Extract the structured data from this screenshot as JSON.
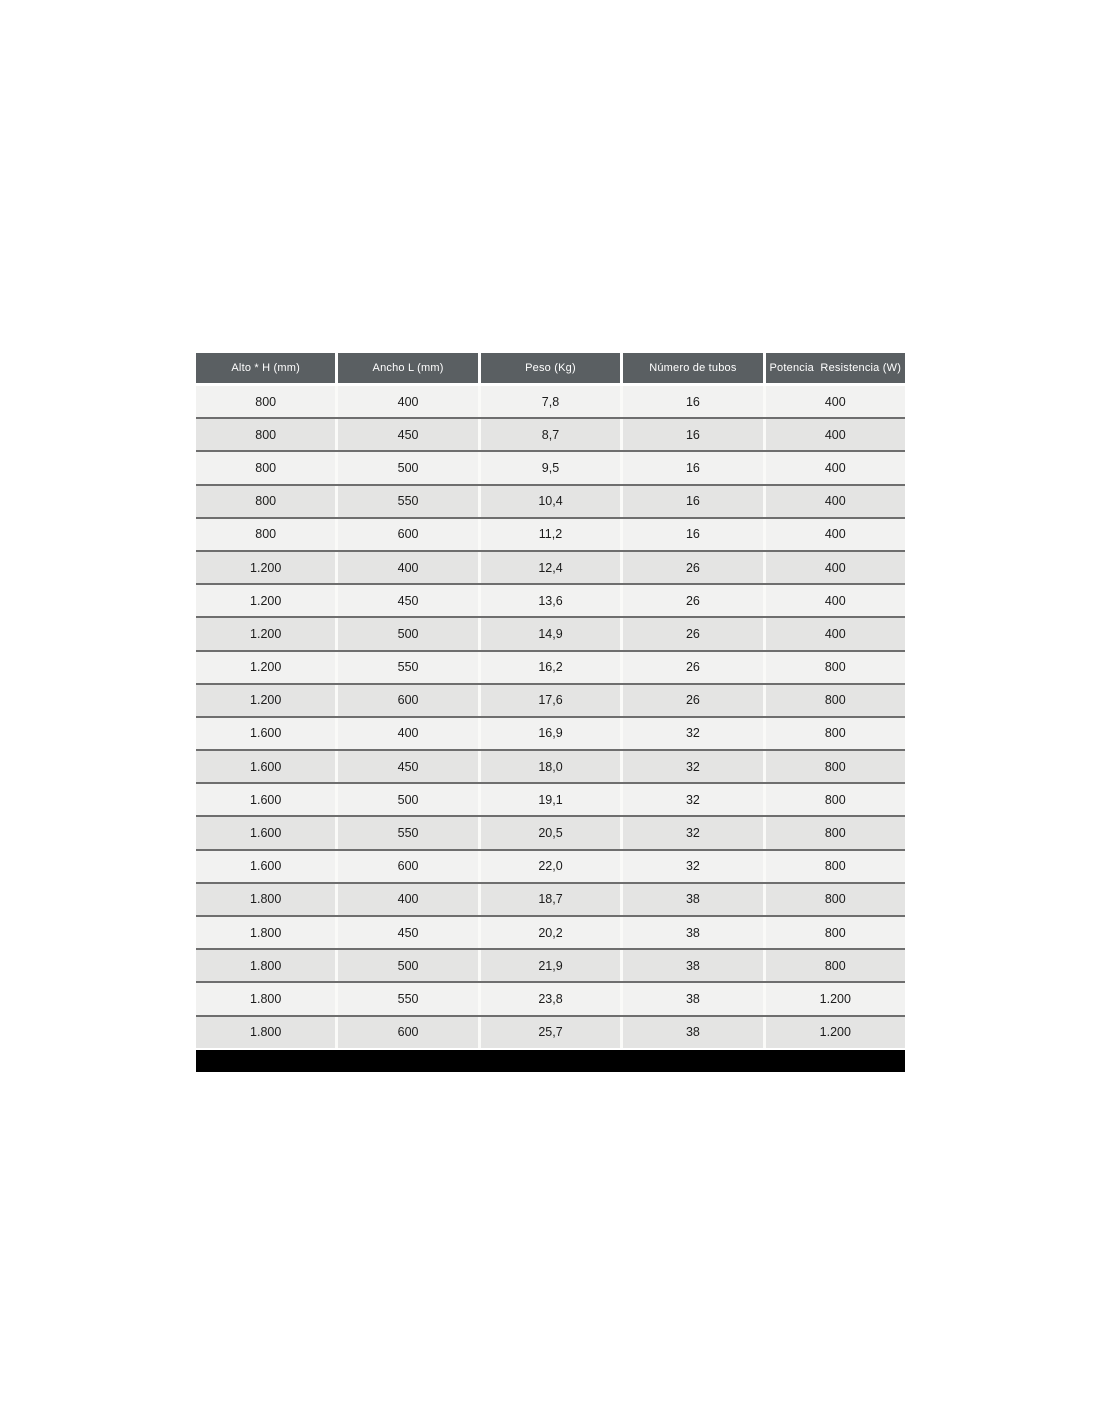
{
  "page": {
    "background": "#ffffff"
  },
  "table": {
    "headers": [
      "Alto * H (mm)",
      "Ancho L (mm)",
      "Peso (Kg)",
      "Número de tubos",
      "Potencia  Resistencia (W)"
    ],
    "rows": [
      [
        "800",
        "400",
        "7,8",
        "16",
        "400"
      ],
      [
        "800",
        "450",
        "8,7",
        "16",
        "400"
      ],
      [
        "800",
        "500",
        "9,5",
        "16",
        "400"
      ],
      [
        "800",
        "550",
        "10,4",
        "16",
        "400"
      ],
      [
        "800",
        "600",
        "11,2",
        "16",
        "400"
      ],
      [
        "1.200",
        "400",
        "12,4",
        "26",
        "400"
      ],
      [
        "1.200",
        "450",
        "13,6",
        "26",
        "400"
      ],
      [
        "1.200",
        "500",
        "14,9",
        "26",
        "400"
      ],
      [
        "1.200",
        "550",
        "16,2",
        "26",
        "800"
      ],
      [
        "1.200",
        "600",
        "17,6",
        "26",
        "800"
      ],
      [
        "1.600",
        "400",
        "16,9",
        "32",
        "800"
      ],
      [
        "1.600",
        "450",
        "18,0",
        "32",
        "800"
      ],
      [
        "1.600",
        "500",
        "19,1",
        "32",
        "800"
      ],
      [
        "1.600",
        "550",
        "20,5",
        "32",
        "800"
      ],
      [
        "1.600",
        "600",
        "22,0",
        "32",
        "800"
      ],
      [
        "1.800",
        "400",
        "18,7",
        "38",
        "800"
      ],
      [
        "1.800",
        "450",
        "20,2",
        "38",
        "800"
      ],
      [
        "1.800",
        "500",
        "21,9",
        "38",
        "800"
      ],
      [
        "1.800",
        "550",
        "23,8",
        "38",
        "1.200"
      ],
      [
        "1.800",
        "600",
        "25,7",
        "38",
        "1.200"
      ]
    ],
    "colors": {
      "header_bg": "#5a5f62",
      "header_text": "#ffffff",
      "row_light": "#f2f2f1",
      "row_dark": "#e4e4e3",
      "row_separator": "#6e6e6e",
      "cell_text": "#1c1c1c",
      "footer_bar": "#000000"
    }
  }
}
